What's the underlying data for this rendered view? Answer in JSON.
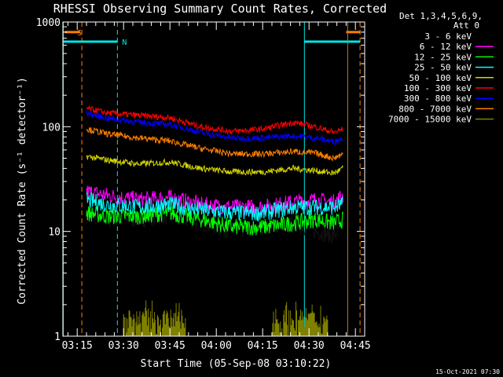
{
  "chart_data": {
    "type": "line",
    "title": "RHESSI Observing Summary Count Rates, Corrected",
    "xlabel": "Start Time (05-Sep-08 03:10:22)",
    "ylabel": "Corrected Count Rate (s⁻¹ detector⁻¹)",
    "y_scale": "log",
    "ylim": [
      1,
      1000
    ],
    "xlim": [
      "03:10:22",
      "04:48:00"
    ],
    "x_ticks": [
      "03:15",
      "03:30",
      "03:45",
      "04:00",
      "04:15",
      "04:30",
      "04:45"
    ],
    "y_ticks": [
      "1",
      "10",
      "100",
      "1000"
    ],
    "legend_header": [
      "Det 1,3,4,5,6,9,",
      "Att 0"
    ],
    "legend_position": "top-right",
    "timestamp": "15-Oct-2021 07:30",
    "flags": [
      {
        "label": "S",
        "color": "#ff7f00",
        "segments": [
          [
            "03:11:00",
            "03:16:00"
          ],
          [
            "04:42:00",
            "04:46:30"
          ]
        ],
        "level": 800
      },
      {
        "label": "N",
        "color": "#00e5e5",
        "segments": [
          [
            "03:10:22",
            "03:28:00"
          ],
          [
            "04:28:30",
            "04:46:30"
          ]
        ],
        "level": 650
      }
    ],
    "vlines": [
      {
        "time": "03:16:30",
        "color": "#ff7f00",
        "style": "dashed"
      },
      {
        "time": "03:28:00",
        "color": "#00e5e5",
        "style": "dashed"
      },
      {
        "time": "04:28:30",
        "color": "#00e5e5",
        "style": "solid"
      },
      {
        "time": "04:46:30",
        "color": "#ff7f00",
        "style": "dashed"
      },
      {
        "time": "03:10:30",
        "color": "#00e5e5",
        "style": "solid"
      },
      {
        "time": "04:42:30",
        "color": "#b8860b",
        "style": "solid"
      }
    ],
    "series": [
      {
        "name": "3 - 6 keV",
        "color": "#000000",
        "times": [
          "03:18",
          "03:25",
          "03:35",
          "03:45",
          "03:55",
          "04:05",
          "04:15",
          "04:25",
          "04:32",
          "04:38",
          "04:41"
        ],
        "values": [
          14,
          13,
          13,
          14,
          12,
          10,
          11,
          12,
          10,
          9,
          12
        ]
      },
      {
        "name": "6 - 12 keV",
        "color": "#ff00ff",
        "times": [
          "03:18",
          "03:25",
          "03:35",
          "03:45",
          "03:55",
          "04:05",
          "04:15",
          "04:25",
          "04:32",
          "04:38",
          "04:41"
        ],
        "values": [
          24,
          22,
          20,
          21,
          18,
          17,
          17,
          19,
          20,
          19,
          22
        ]
      },
      {
        "name": "12 - 25 keV",
        "color": "#00ff00",
        "times": [
          "03:18",
          "03:25",
          "03:35",
          "03:45",
          "03:55",
          "04:05",
          "04:15",
          "04:25",
          "04:32",
          "04:38",
          "04:41"
        ],
        "values": [
          15,
          14,
          14,
          15,
          13,
          11,
          11,
          12,
          13,
          12,
          13
        ]
      },
      {
        "name": "25 - 50 keV",
        "color": "#00ffff",
        "times": [
          "03:18",
          "03:25",
          "03:35",
          "03:45",
          "03:55",
          "04:05",
          "04:15",
          "04:25",
          "04:32",
          "04:38",
          "04:41"
        ],
        "values": [
          20,
          18,
          17,
          18,
          16,
          15,
          15,
          17,
          17,
          17,
          18
        ]
      },
      {
        "name": "50 - 100 keV",
        "color": "#d7d700",
        "times": [
          "03:18",
          "03:25",
          "03:35",
          "03:45",
          "03:55",
          "04:05",
          "04:15",
          "04:25",
          "04:32",
          "04:38",
          "04:41"
        ],
        "values": [
          52,
          48,
          44,
          46,
          40,
          37,
          37,
          40,
          38,
          36,
          40
        ]
      },
      {
        "name": "100 - 300 keV",
        "color": "#ff0000",
        "times": [
          "03:18",
          "03:25",
          "03:35",
          "03:45",
          "03:55",
          "04:05",
          "04:15",
          "04:25",
          "04:32",
          "04:38",
          "04:41"
        ],
        "values": [
          150,
          135,
          128,
          122,
          100,
          90,
          95,
          110,
          100,
          88,
          95
        ]
      },
      {
        "name": "300 - 800 keV",
        "color": "#0000ff",
        "times": [
          "03:18",
          "03:25",
          "03:35",
          "03:45",
          "03:55",
          "04:05",
          "04:15",
          "04:25",
          "04:32",
          "04:38",
          "04:41"
        ],
        "values": [
          135,
          120,
          110,
          105,
          88,
          78,
          78,
          82,
          78,
          72,
          78
        ]
      },
      {
        "name": "800 - 7000 keV",
        "color": "#ff7f00",
        "times": [
          "03:18",
          "03:25",
          "03:35",
          "03:45",
          "03:55",
          "04:05",
          "04:15",
          "04:25",
          "04:32",
          "04:38",
          "04:41"
        ],
        "values": [
          95,
          85,
          78,
          73,
          62,
          55,
          55,
          58,
          56,
          50,
          55
        ]
      },
      {
        "name": "7000 - 15000 keV",
        "color": "#808000",
        "times": [
          "03:30",
          "03:40",
          "03:50",
          "04:18",
          "04:24",
          "04:28",
          "04:32",
          "04:36"
        ],
        "values": [
          1.7,
          1.6,
          1.5,
          1.6,
          1.8,
          1.7,
          1.8,
          1.6
        ]
      }
    ]
  }
}
